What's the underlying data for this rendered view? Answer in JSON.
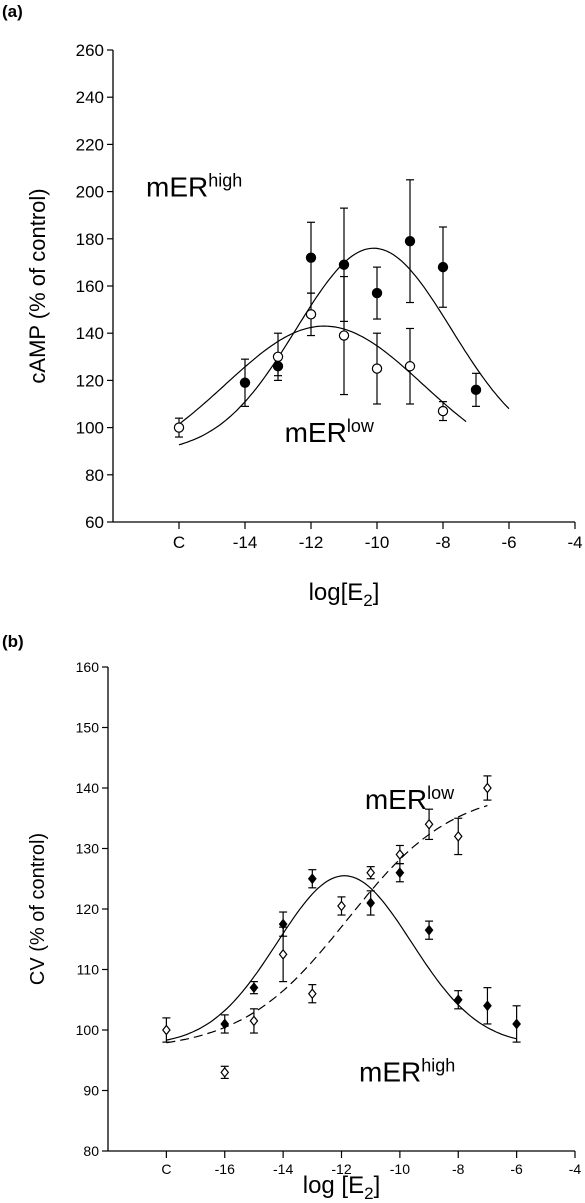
{
  "chart_data": [
    {
      "panel_label": "(a)",
      "type": "scatter",
      "xlabel_main": "log[E",
      "xlabel_sub": "2",
      "xlabel_close": "]",
      "ylabel": "cAMP (% of control)",
      "ylim": [
        60,
        260
      ],
      "yticks": [
        "60",
        "80",
        "100",
        "120",
        "140",
        "160",
        "180",
        "200",
        "220",
        "240",
        "260"
      ],
      "xticks": [
        {
          "x": -16,
          "label": "C"
        },
        {
          "x": -14,
          "label": "-14"
        },
        {
          "x": -12,
          "label": "-12"
        },
        {
          "x": -10,
          "label": "-10"
        },
        {
          "x": -8,
          "label": "-8"
        },
        {
          "x": -6,
          "label": "-6"
        },
        {
          "x": -4,
          "label": "-4"
        }
      ],
      "xlim": [
        -18,
        -4
      ],
      "annotations": [
        {
          "base": "mER",
          "sup": "high",
          "x": -17,
          "y": 198
        },
        {
          "base": "mER",
          "sup": "low",
          "x": -12.8,
          "y": 94
        }
      ],
      "series": [
        {
          "marker": "filled",
          "points": [
            {
              "x": -14,
              "y": 119,
              "err": 10
            },
            {
              "x": -13,
              "y": 126,
              "err": 4
            },
            {
              "x": -12,
              "y": 172,
              "err": 15
            },
            {
              "x": -11,
              "y": 169,
              "err": 24
            },
            {
              "x": -10,
              "y": 157,
              "err": 11
            },
            {
              "x": -9,
              "y": 179,
              "err": 26
            },
            {
              "x": -8,
              "y": 168,
              "err": 17
            },
            {
              "x": -7,
              "y": 116,
              "err": 7
            }
          ],
          "fit": {
            "type": "gauss",
            "base": 89,
            "amp": 87,
            "center": -10.1,
            "width": 2.35,
            "from": -16,
            "to": -6,
            "dash": false
          }
        },
        {
          "marker": "open",
          "points": [
            {
              "x": -16,
              "y": 100,
              "err": 4
            },
            {
              "x": -13,
              "y": 130,
              "err": 10
            },
            {
              "x": -12,
              "y": 148,
              "err": 9
            },
            {
              "x": -11,
              "y": 139,
              "err": 25
            },
            {
              "x": -10,
              "y": 125,
              "err": 15
            },
            {
              "x": -9,
              "y": 126,
              "err": 16
            },
            {
              "x": -8,
              "y": 107,
              "err": 4
            }
          ],
          "fit": {
            "type": "gauss",
            "base": 80,
            "amp": 63,
            "center": -11.6,
            "width": 3.0,
            "from": -16,
            "to": -7.3,
            "dash": false
          }
        }
      ]
    },
    {
      "panel_label": "(b)",
      "type": "scatter",
      "xlabel_main": "log [E",
      "xlabel_sub": "2",
      "xlabel_close": "]",
      "ylabel": "CV (% of control)",
      "ylim": [
        80,
        160
      ],
      "yticks": [
        "80",
        "90",
        "100",
        "110",
        "120",
        "130",
        "140",
        "150",
        "160"
      ],
      "xticks": [
        {
          "x": -18,
          "label": "C"
        },
        {
          "x": -16,
          "label": "-16"
        },
        {
          "x": -14,
          "label": "-14"
        },
        {
          "x": -12,
          "label": "-12"
        },
        {
          "x": -10,
          "label": "-10"
        },
        {
          "x": -8,
          "label": "-8"
        },
        {
          "x": -6,
          "label": "-6"
        },
        {
          "x": -4,
          "label": "-4"
        }
      ],
      "xlim": [
        -20,
        -4
      ],
      "annotations": [
        {
          "base": "mER",
          "sup": "low",
          "x": -11.2,
          "y": 136.5
        },
        {
          "base": "mER",
          "sup": "high",
          "x": -11.4,
          "y": 91.5
        }
      ],
      "series": [
        {
          "marker": "filled-diamond",
          "points": [
            {
              "x": -16,
              "y": 101,
              "err": 1.5
            },
            {
              "x": -15,
              "y": 107,
              "err": 1
            },
            {
              "x": -14,
              "y": 117.5,
              "err": 2
            },
            {
              "x": -13,
              "y": 125,
              "err": 1.5
            },
            {
              "x": -11,
              "y": 121,
              "err": 2
            },
            {
              "x": -10,
              "y": 126,
              "err": 1.5
            },
            {
              "x": -9,
              "y": 116.5,
              "err": 1.5
            },
            {
              "x": -8,
              "y": 105,
              "err": 1.5
            },
            {
              "x": -7,
              "y": 104,
              "err": 3
            },
            {
              "x": -6,
              "y": 101,
              "err": 3
            }
          ],
          "fit": {
            "type": "gauss",
            "base": 97.5,
            "amp": 28,
            "center": -11.9,
            "width": 2.3,
            "from": -18,
            "to": -6,
            "dash": false
          }
        },
        {
          "marker": "open-diamond",
          "points": [
            {
              "x": -18,
              "y": 100,
              "err": 2
            },
            {
              "x": -16,
              "y": 93,
              "err": 1
            },
            {
              "x": -15,
              "y": 101.5,
              "err": 2
            },
            {
              "x": -14,
              "y": 112.5,
              "err": 4.5
            },
            {
              "x": -13,
              "y": 106,
              "err": 1.5
            },
            {
              "x": -12,
              "y": 120.5,
              "err": 1.5
            },
            {
              "x": -11,
              "y": 126,
              "err": 1
            },
            {
              "x": -10,
              "y": 129,
              "err": 1.5
            },
            {
              "x": -9,
              "y": 134,
              "err": 2.5
            },
            {
              "x": -8,
              "y": 132,
              "err": 3
            },
            {
              "x": -7,
              "y": 140,
              "err": 2
            }
          ],
          "fit": {
            "type": "sigmoid",
            "bottom": 96.5,
            "top": 140,
            "center": -11.8,
            "slope": 0.55,
            "from": -18,
            "to": -7,
            "dash": true
          }
        }
      ]
    }
  ]
}
